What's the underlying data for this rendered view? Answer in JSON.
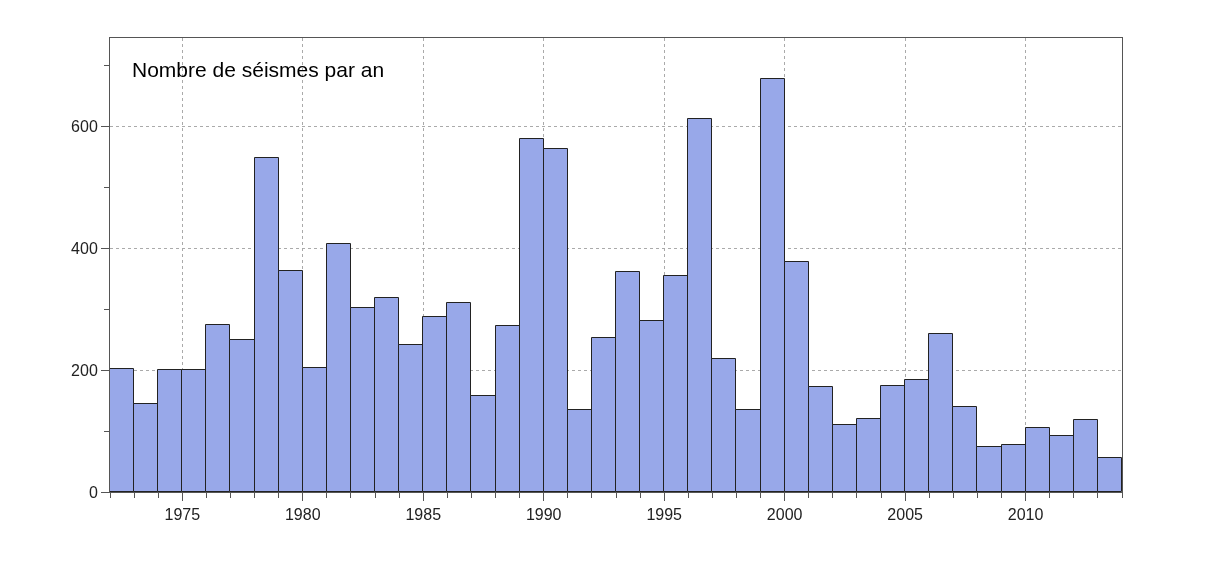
{
  "chart_data": {
    "type": "histogram",
    "title": "Nombre de séismes par an",
    "bins": [
      1972,
      1973,
      1974,
      1975,
      1976,
      1977,
      1978,
      1979,
      1980,
      1981,
      1982,
      1983,
      1984,
      1985,
      1986,
      1987,
      1988,
      1989,
      1990,
      1991,
      1992,
      1993,
      1994,
      1995,
      1996,
      1997,
      1998,
      1999,
      2000,
      2001,
      2002,
      2003,
      2004,
      2005,
      2006,
      2007,
      2008,
      2009,
      2010,
      2011,
      2012,
      2013,
      2014
    ],
    "values": [
      202,
      144,
      200,
      200,
      274,
      249,
      548,
      362,
      204,
      407,
      302,
      318,
      241,
      287,
      310,
      157,
      272,
      579,
      563,
      135,
      253,
      361,
      281,
      355,
      612,
      219,
      135,
      677,
      377,
      173,
      110,
      119,
      174,
      184,
      260,
      140,
      74,
      77,
      105,
      92,
      118,
      55
    ],
    "color": "#98a8e9",
    "xlim": [
      1972,
      2014
    ],
    "xticks": [
      {
        "value": 1972,
        "label": null
      },
      {
        "value": 1973,
        "label": null
      },
      {
        "value": 1974,
        "label": null
      },
      1975,
      {
        "value": 1976,
        "label": null
      },
      {
        "value": 1977,
        "label": null
      },
      {
        "value": 1978,
        "label": null
      },
      {
        "value": 1979,
        "label": null
      },
      1980,
      {
        "value": 1981,
        "label": null
      },
      {
        "value": 1982,
        "label": null
      },
      {
        "value": 1983,
        "label": null
      },
      {
        "value": 1984,
        "label": null
      },
      1985,
      {
        "value": 1986,
        "label": null
      },
      {
        "value": 1987,
        "label": null
      },
      {
        "value": 1988,
        "label": null
      },
      {
        "value": 1989,
        "label": null
      },
      1990,
      {
        "value": 1991,
        "label": null
      },
      {
        "value": 1992,
        "label": null
      },
      {
        "value": 1993,
        "label": null
      },
      {
        "value": 1994,
        "label": null
      },
      1995,
      {
        "value": 1996,
        "label": null
      },
      {
        "value": 1997,
        "label": null
      },
      {
        "value": 1998,
        "label": null
      },
      {
        "value": 1999,
        "label": null
      },
      2000,
      {
        "value": 2001,
        "label": null
      },
      {
        "value": 2002,
        "label": null
      },
      {
        "value": 2003,
        "label": null
      },
      {
        "value": 2004,
        "label": null
      },
      2005,
      {
        "value": 2006,
        "label": null
      },
      {
        "value": 2007,
        "label": null
      },
      {
        "value": 2008,
        "label": null
      },
      {
        "value": 2009,
        "label": null
      },
      2010,
      {
        "value": 2011,
        "label": null
      },
      {
        "value": 2012,
        "label": null
      },
      {
        "value": 2013,
        "label": null
      },
      {
        "value": 2014,
        "label": null
      }
    ],
    "ylim": [
      0,
      745
    ],
    "yticks": [
      0,
      {
        "value": 100,
        "label": null
      },
      200,
      {
        "value": 300,
        "label": null
      },
      400,
      {
        "value": 500,
        "label": null
      },
      600,
      {
        "value": 700,
        "label": null
      }
    ],
    "grid": true
  }
}
